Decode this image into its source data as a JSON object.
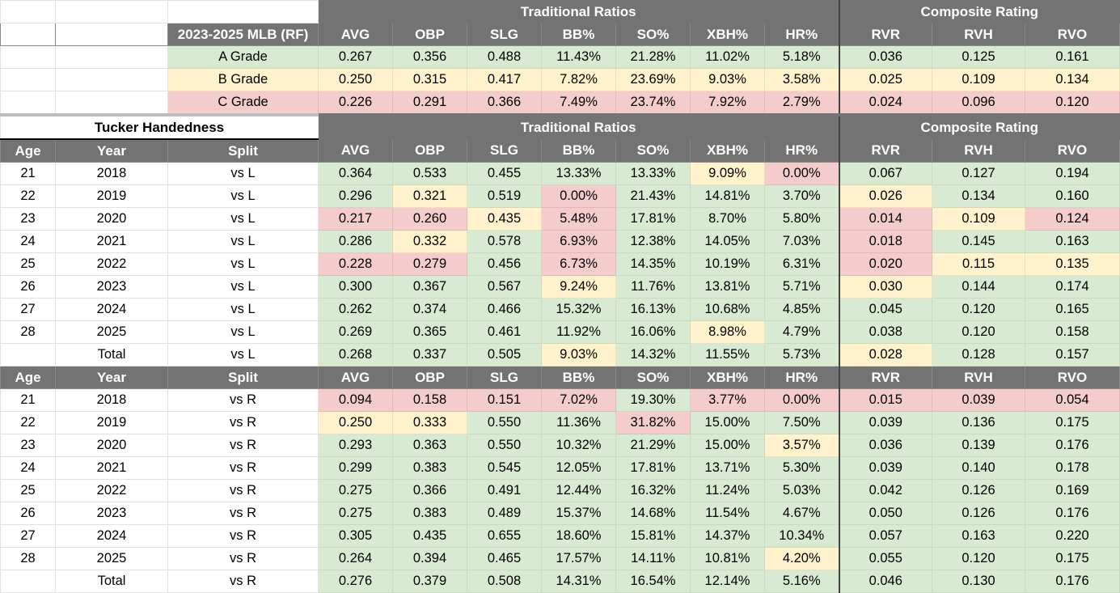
{
  "benchmark": {
    "group_traditional": "Traditional Ratios",
    "group_composite": "Composite Rating",
    "label": "2023-2025 MLB (RF)",
    "columns": [
      "AVG",
      "OBP",
      "SLG",
      "BB%",
      "SO%",
      "XBH%",
      "HR%",
      "RVR",
      "RVH",
      "RVO"
    ],
    "rows": [
      {
        "grade": "A Grade",
        "values": [
          "0.267",
          "0.356",
          "0.488",
          "11.43%",
          "21.28%",
          "11.02%",
          "5.18%",
          "0.036",
          "0.125",
          "0.161"
        ]
      },
      {
        "grade": "B Grade",
        "values": [
          "0.250",
          "0.315",
          "0.417",
          "7.82%",
          "23.69%",
          "9.03%",
          "3.58%",
          "0.025",
          "0.109",
          "0.134"
        ]
      },
      {
        "grade": "C Grade",
        "values": [
          "0.226",
          "0.291",
          "0.366",
          "7.49%",
          "23.74%",
          "7.92%",
          "2.79%",
          "0.024",
          "0.096",
          "0.120"
        ]
      }
    ]
  },
  "splits": {
    "title": "Tucker Handedness",
    "group_traditional": "Traditional Ratios",
    "group_composite": "Composite Rating",
    "headers": [
      "Age",
      "Year",
      "Split",
      "AVG",
      "OBP",
      "SLG",
      "BB%",
      "SO%",
      "XBH%",
      "HR%",
      "RVR",
      "RVH",
      "RVO"
    ],
    "vs_l": [
      {
        "age": "21",
        "year": "2018",
        "split": "vs L",
        "values": [
          "0.364",
          "0.533",
          "0.455",
          "13.33%",
          "13.33%",
          "9.09%",
          "0.00%",
          "0.067",
          "0.127",
          "0.194"
        ]
      },
      {
        "age": "22",
        "year": "2019",
        "split": "vs L",
        "values": [
          "0.296",
          "0.321",
          "0.519",
          "0.00%",
          "21.43%",
          "14.81%",
          "3.70%",
          "0.026",
          "0.134",
          "0.160"
        ]
      },
      {
        "age": "23",
        "year": "2020",
        "split": "vs L",
        "values": [
          "0.217",
          "0.260",
          "0.435",
          "5.48%",
          "17.81%",
          "8.70%",
          "5.80%",
          "0.014",
          "0.109",
          "0.124"
        ]
      },
      {
        "age": "24",
        "year": "2021",
        "split": "vs L",
        "values": [
          "0.286",
          "0.332",
          "0.578",
          "6.93%",
          "12.38%",
          "14.05%",
          "7.03%",
          "0.018",
          "0.145",
          "0.163"
        ]
      },
      {
        "age": "25",
        "year": "2022",
        "split": "vs L",
        "values": [
          "0.228",
          "0.279",
          "0.456",
          "6.73%",
          "14.35%",
          "10.19%",
          "6.31%",
          "0.020",
          "0.115",
          "0.135"
        ]
      },
      {
        "age": "26",
        "year": "2023",
        "split": "vs L",
        "values": [
          "0.300",
          "0.367",
          "0.567",
          "9.24%",
          "11.76%",
          "13.81%",
          "5.71%",
          "0.030",
          "0.144",
          "0.174"
        ]
      },
      {
        "age": "27",
        "year": "2024",
        "split": "vs L",
        "values": [
          "0.262",
          "0.374",
          "0.466",
          "15.32%",
          "16.13%",
          "10.68%",
          "4.85%",
          "0.045",
          "0.120",
          "0.165"
        ]
      },
      {
        "age": "28",
        "year": "2025",
        "split": "vs L",
        "values": [
          "0.269",
          "0.365",
          "0.461",
          "11.92%",
          "16.06%",
          "8.98%",
          "4.79%",
          "0.038",
          "0.120",
          "0.158"
        ]
      },
      {
        "age": "",
        "year": "Total",
        "split": "vs L",
        "values": [
          "0.268",
          "0.337",
          "0.505",
          "9.03%",
          "14.32%",
          "11.55%",
          "5.73%",
          "0.028",
          "0.128",
          "0.157"
        ]
      }
    ],
    "vs_r": [
      {
        "age": "21",
        "year": "2018",
        "split": "vs R",
        "values": [
          "0.094",
          "0.158",
          "0.151",
          "7.02%",
          "19.30%",
          "3.77%",
          "0.00%",
          "0.015",
          "0.039",
          "0.054"
        ]
      },
      {
        "age": "22",
        "year": "2019",
        "split": "vs R",
        "values": [
          "0.250",
          "0.333",
          "0.550",
          "11.36%",
          "31.82%",
          "15.00%",
          "7.50%",
          "0.039",
          "0.136",
          "0.175"
        ]
      },
      {
        "age": "23",
        "year": "2020",
        "split": "vs R",
        "values": [
          "0.293",
          "0.363",
          "0.550",
          "10.32%",
          "21.29%",
          "15.00%",
          "3.57%",
          "0.036",
          "0.139",
          "0.176"
        ]
      },
      {
        "age": "24",
        "year": "2021",
        "split": "vs R",
        "values": [
          "0.299",
          "0.383",
          "0.545",
          "12.05%",
          "17.81%",
          "13.71%",
          "5.30%",
          "0.039",
          "0.140",
          "0.178"
        ]
      },
      {
        "age": "25",
        "year": "2022",
        "split": "vs R",
        "values": [
          "0.275",
          "0.366",
          "0.491",
          "12.44%",
          "16.32%",
          "11.24%",
          "5.03%",
          "0.042",
          "0.126",
          "0.169"
        ]
      },
      {
        "age": "26",
        "year": "2023",
        "split": "vs R",
        "values": [
          "0.275",
          "0.383",
          "0.489",
          "15.37%",
          "14.68%",
          "11.54%",
          "4.67%",
          "0.050",
          "0.126",
          "0.176"
        ]
      },
      {
        "age": "27",
        "year": "2024",
        "split": "vs R",
        "values": [
          "0.305",
          "0.435",
          "0.655",
          "18.60%",
          "15.81%",
          "14.37%",
          "10.34%",
          "0.057",
          "0.163",
          "0.220"
        ]
      },
      {
        "age": "28",
        "year": "2025",
        "split": "vs R",
        "values": [
          "0.264",
          "0.394",
          "0.465",
          "17.57%",
          "14.11%",
          "10.81%",
          "4.20%",
          "0.055",
          "0.120",
          "0.175"
        ]
      },
      {
        "age": "",
        "year": "Total",
        "split": "vs R",
        "values": [
          "0.276",
          "0.379",
          "0.508",
          "14.31%",
          "16.54%",
          "12.14%",
          "5.16%",
          "0.046",
          "0.130",
          "0.176"
        ]
      }
    ]
  },
  "colors": {
    "header_bg": "#737373",
    "grade_a_green": "#d9ead3",
    "grade_b_yellow": "#fff2cc",
    "grade_c_red": "#f4cccc"
  }
}
